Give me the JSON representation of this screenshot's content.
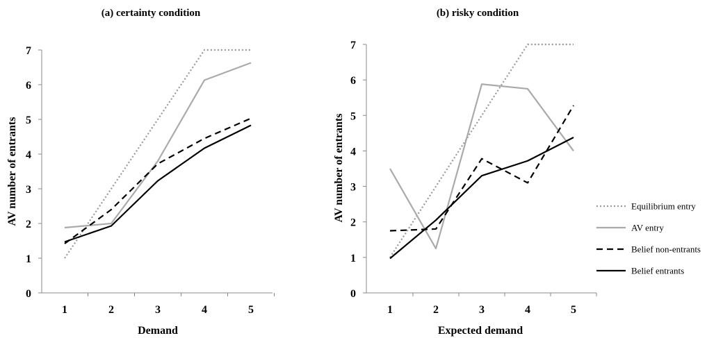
{
  "chart_data": [
    {
      "type": "line",
      "title": "(a) certainty condition",
      "xlabel": "Demand",
      "ylabel": "AV number of entrants",
      "categories": [
        "1",
        "2",
        "3",
        "4",
        "5"
      ],
      "ylim": [
        0,
        7
      ],
      "yticks": [
        "0",
        "1",
        "2",
        "3",
        "4",
        "5",
        "6",
        "7"
      ],
      "series": [
        {
          "name": "Equilibrium entry",
          "values": [
            1,
            3,
            5,
            7,
            7
          ],
          "color": "#999999",
          "style": "dotted"
        },
        {
          "name": "AV entry",
          "values": [
            1.88,
            2.0,
            3.8,
            6.13,
            6.63
          ],
          "color": "#aaaaaa",
          "style": "solid"
        },
        {
          "name": "Belief non-entrants",
          "values": [
            1.42,
            2.4,
            3.72,
            4.45,
            5.03
          ],
          "color": "#000000",
          "style": "dashed"
        },
        {
          "name": "Belief entrants",
          "values": [
            1.47,
            1.93,
            3.23,
            4.17,
            4.83
          ],
          "color": "#000000",
          "style": "solid"
        }
      ]
    },
    {
      "type": "line",
      "title": "(b) risky condition",
      "xlabel": "Expected demand",
      "ylabel": "AV number of entrants",
      "categories": [
        "1",
        "2",
        "3",
        "4",
        "5"
      ],
      "ylim": [
        0,
        7
      ],
      "yticks": [
        "0",
        "1",
        "2",
        "3",
        "4",
        "5",
        "6",
        "7"
      ],
      "series": [
        {
          "name": "Equilibrium entry",
          "values": [
            1,
            3,
            5,
            7,
            7
          ],
          "color": "#999999",
          "style": "dotted"
        },
        {
          "name": "AV entry",
          "values": [
            3.5,
            1.25,
            5.88,
            5.75,
            4.0
          ],
          "color": "#aaaaaa",
          "style": "solid"
        },
        {
          "name": "Belief non-entrants",
          "values": [
            1.75,
            1.8,
            3.78,
            3.1,
            5.28
          ],
          "color": "#000000",
          "style": "dashed"
        },
        {
          "name": "Belief entrants",
          "values": [
            0.97,
            2.05,
            3.3,
            3.72,
            4.38
          ],
          "color": "#000000",
          "style": "solid"
        }
      ]
    }
  ],
  "legend": {
    "placement": "right",
    "items": [
      {
        "label": "Equilibrium entry",
        "color": "#999999",
        "style": "dotted"
      },
      {
        "label": "AV entry",
        "color": "#aaaaaa",
        "style": "solid"
      },
      {
        "label": "Belief non-entrants",
        "color": "#000000",
        "style": "dashed"
      },
      {
        "label": "Belief entrants",
        "color": "#000000",
        "style": "solid"
      }
    ]
  }
}
